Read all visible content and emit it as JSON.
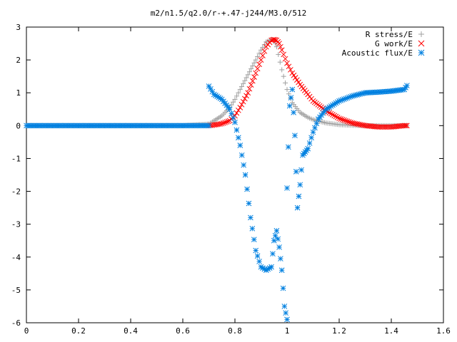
{
  "chart_data": {
    "type": "scatter",
    "title": "m2/n1.5/q2.0/r-+.47-j244/M3.0/512",
    "xlim": [
      0,
      1.6
    ],
    "ylim": [
      -6,
      3
    ],
    "xticks": [
      "0",
      "0.2",
      "0.4",
      "0.6",
      "0.8",
      "1",
      "1.2",
      "1.4",
      "1.6"
    ],
    "yticks": [
      "3",
      "2",
      "1",
      "0",
      "-1",
      "-2",
      "-3",
      "-4",
      "-5",
      "-6"
    ],
    "legend_position": "top-right",
    "series": [
      {
        "name": "R stress/E",
        "marker": "plus",
        "color": "#a0a0a0",
        "x": [
          0.0,
          0.1,
          0.2,
          0.3,
          0.4,
          0.5,
          0.6,
          0.7,
          0.72,
          0.75,
          0.78,
          0.8,
          0.82,
          0.85,
          0.88,
          0.9,
          0.92,
          0.94,
          0.95,
          0.96,
          0.98,
          1.0,
          1.02,
          1.05,
          1.08,
          1.1,
          1.15,
          1.2,
          1.25,
          1.3,
          1.35,
          1.4,
          1.45,
          1.46
        ],
        "y": [
          0,
          0,
          0,
          0,
          0,
          0,
          0,
          0.05,
          0.15,
          0.3,
          0.55,
          0.8,
          1.1,
          1.55,
          2.0,
          2.3,
          2.55,
          2.62,
          2.6,
          2.4,
          1.7,
          1.1,
          0.7,
          0.4,
          0.25,
          0.18,
          0.08,
          0.03,
          0.01,
          0.0,
          0.0,
          0.0,
          0.0,
          0.0
        ]
      },
      {
        "name": "G work/E",
        "marker": "cross",
        "color": "#ff0000",
        "x": [
          0.7,
          0.72,
          0.75,
          0.78,
          0.8,
          0.82,
          0.85,
          0.88,
          0.9,
          0.92,
          0.94,
          0.95,
          0.96,
          0.97,
          0.98,
          1.0,
          1.02,
          1.05,
          1.08,
          1.1,
          1.15,
          1.2,
          1.25,
          1.3,
          1.35,
          1.4,
          1.45,
          1.46
        ],
        "y": [
          0.0,
          0.02,
          0.06,
          0.15,
          0.3,
          0.55,
          1.0,
          1.6,
          2.0,
          2.4,
          2.6,
          2.62,
          2.6,
          2.5,
          2.3,
          1.9,
          1.6,
          1.25,
          0.95,
          0.75,
          0.45,
          0.22,
          0.08,
          0.0,
          -0.04,
          -0.04,
          0.0,
          0.0
        ]
      },
      {
        "name": "Acoustic flux/E",
        "marker": "star",
        "color": "#0080e0",
        "x": [
          0.0,
          0.1,
          0.2,
          0.3,
          0.4,
          0.5,
          0.6,
          0.7,
          0.7,
          0.72,
          0.75,
          0.78,
          0.8,
          0.82,
          0.84,
          0.86,
          0.88,
          0.9,
          0.92,
          0.94,
          0.95,
          0.96,
          0.97,
          0.98,
          0.99,
          1.0,
          1.0,
          1.01,
          1.02,
          1.03,
          1.04,
          1.05,
          1.06,
          1.07,
          1.08,
          1.1,
          1.12,
          1.15,
          1.2,
          1.25,
          1.3,
          1.35,
          1.4,
          1.45,
          1.46
        ],
        "y": [
          0,
          0,
          0,
          0,
          0,
          0,
          0,
          0,
          1.2,
          0.95,
          0.8,
          0.5,
          0.1,
          -0.6,
          -1.5,
          -2.8,
          -3.8,
          -4.3,
          -4.4,
          -4.3,
          -3.5,
          -3.2,
          -3.7,
          -4.4,
          -5.5,
          -5.9,
          -1.9,
          0.6,
          1.1,
          -0.3,
          -2.5,
          -1.8,
          -0.9,
          -0.8,
          -0.7,
          -0.2,
          0.2,
          0.5,
          0.75,
          0.9,
          1.0,
          1.02,
          1.05,
          1.1,
          1.22
        ]
      }
    ]
  }
}
